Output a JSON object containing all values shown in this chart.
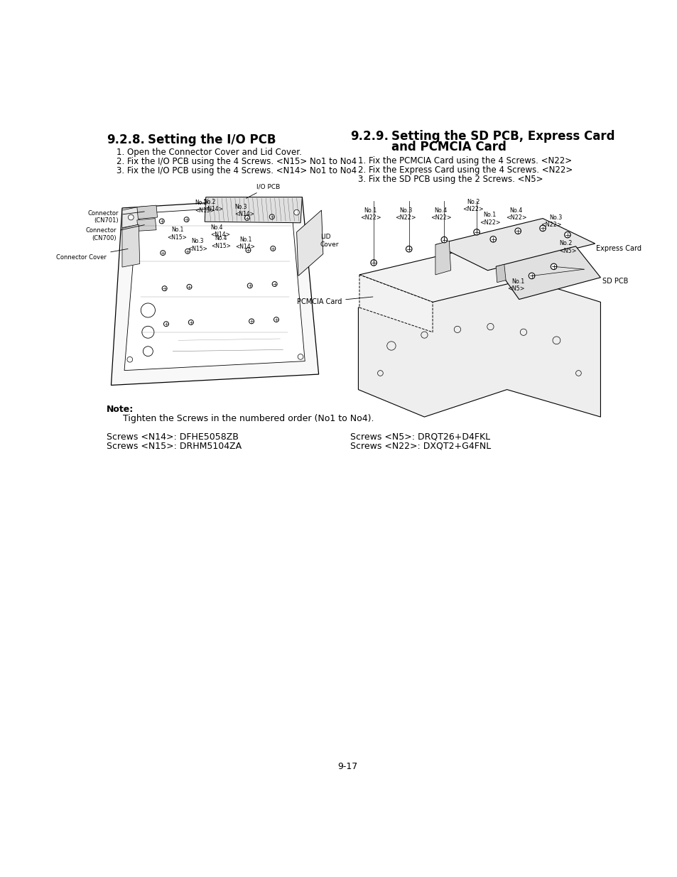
{
  "bg_color": "#ffffff",
  "page_number": "9-17",
  "left_section": {
    "heading_number": "9.2.8.",
    "heading_text": "Setting the I/O PCB",
    "steps": [
      "1. Open the Connector Cover and Lid Cover.",
      "2. Fix the I/O PCB using the 4 Screws. <N15> No1 to No4",
      "3. Fix the I/O PCB using the 4 Screws. <N14> No1 to No4"
    ],
    "note_bold": "Note:",
    "note_text": "Tighten the Screws in the numbered order (No1 to No4).",
    "screws": [
      "Screws <N14>: DFHE5058ZB",
      "Screws <N15>: DRHM5104ZA"
    ]
  },
  "right_section": {
    "heading_number": "9.2.9.",
    "heading_line1": "Setting the SD PCB, Express Card",
    "heading_line2": "and PCMCIA Card",
    "steps": [
      "1. Fix the PCMCIA Card using the 4 Screws. <N22>",
      "2. Fix the Express Card using the 4 Screws. <N22>",
      "3. Fix the SD PCB using the 2 Screws. <N5>"
    ],
    "screws": [
      "Screws <N5>: DRQT26+D4FKL",
      "Screws <N22>: DXQT2+G4FNL"
    ]
  }
}
